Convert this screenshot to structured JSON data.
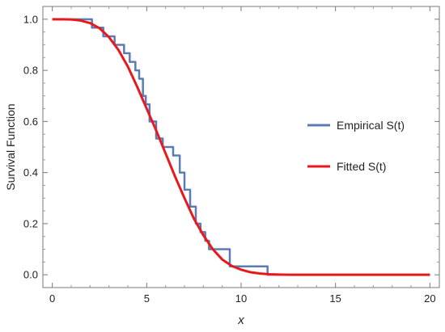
{
  "chart_data": {
    "type": "line",
    "xlabel": "x",
    "ylabel": "Survival Function",
    "xlim": [
      -0.5,
      20.5
    ],
    "ylim": [
      -0.05,
      1.05
    ],
    "xticks": [
      0,
      5,
      10,
      15,
      20
    ],
    "yticks": [
      0.0,
      0.2,
      0.4,
      0.6,
      0.8,
      1.0
    ],
    "xtick_labels": [
      "0",
      "5",
      "10",
      "15",
      "20"
    ],
    "ytick_labels": [
      "0.0",
      "0.2",
      "0.4",
      "0.6",
      "0.8",
      "1.0"
    ],
    "grid": false,
    "legend_position": "right",
    "series": [
      {
        "name": "Empirical S(t)",
        "style": "step",
        "color": "#5b7bb5",
        "x": [
          0,
          2.1,
          2.7,
          3.3,
          3.8,
          4.1,
          4.4,
          4.6,
          4.8,
          4.95,
          5.15,
          5.5,
          5.85,
          6.4,
          6.75,
          7.0,
          7.3,
          7.6,
          7.85,
          8.1,
          8.3,
          9.4,
          11.4,
          20
        ],
        "y": [
          1.0,
          0.967,
          0.933,
          0.9,
          0.867,
          0.833,
          0.8,
          0.767,
          0.7,
          0.667,
          0.6,
          0.533,
          0.5,
          0.467,
          0.4,
          0.333,
          0.267,
          0.2,
          0.167,
          0.133,
          0.1,
          0.033,
          0.0,
          0.0
        ]
      },
      {
        "name": "Fitted S(t)",
        "style": "line",
        "color": "#e8191c",
        "x": [
          0,
          0.5,
          1.0,
          1.5,
          2.0,
          2.5,
          3.0,
          3.5,
          4.0,
          4.5,
          5.0,
          5.5,
          6.0,
          6.5,
          7.0,
          7.5,
          8.0,
          8.5,
          9.0,
          9.5,
          10.0,
          10.5,
          11.0,
          11.5,
          12.0,
          12.5,
          13.0,
          14.0,
          15.0,
          16.0,
          17.0,
          18.0,
          19.0,
          20.0
        ],
        "y": [
          1.0,
          1.0,
          0.999,
          0.995,
          0.985,
          0.965,
          0.93,
          0.88,
          0.815,
          0.735,
          0.65,
          0.565,
          0.475,
          0.385,
          0.3,
          0.22,
          0.155,
          0.1,
          0.06,
          0.035,
          0.02,
          0.01,
          0.005,
          0.002,
          0.001,
          0.0,
          0.0,
          0.0,
          0.0,
          0.0,
          0.0,
          0.0,
          0.0,
          0.0
        ]
      }
    ]
  }
}
